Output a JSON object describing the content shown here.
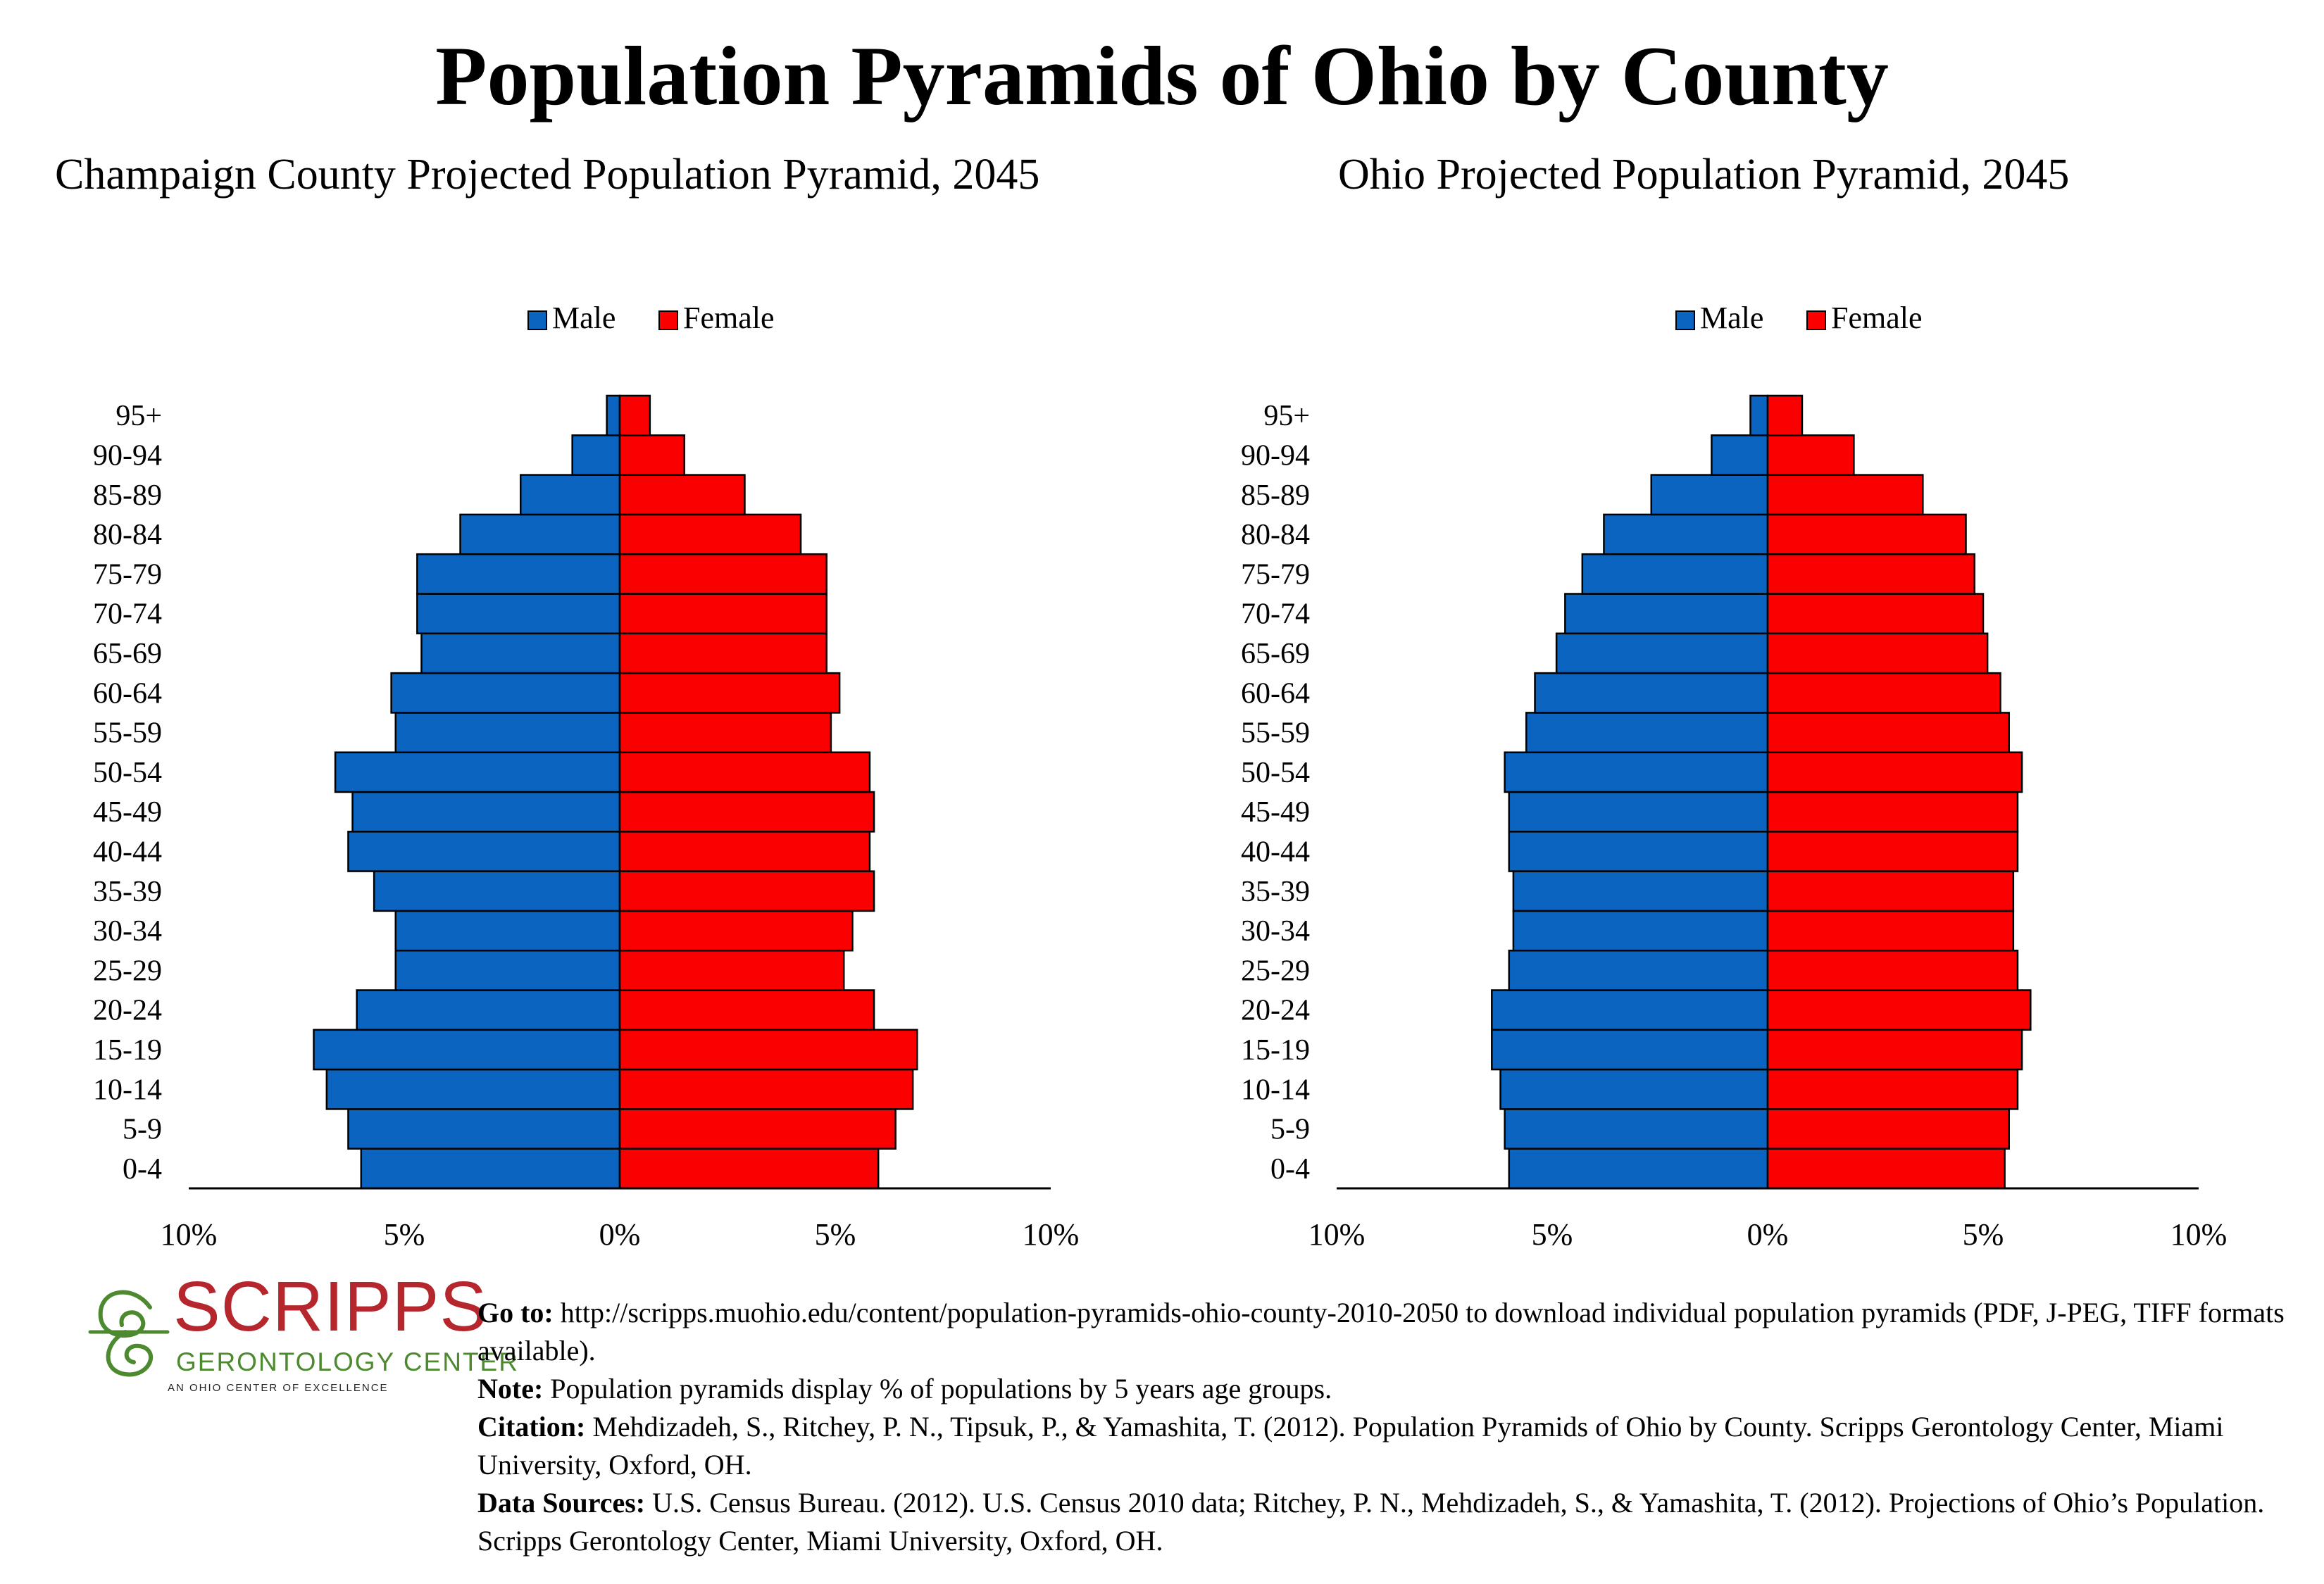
{
  "title": "Population Pyramids of Ohio by County",
  "colors": {
    "male": "#0a64c0",
    "female": "#fa0000",
    "outline": "#000000"
  },
  "legend": {
    "male": "Male",
    "female": "Female"
  },
  "chart_data": [
    {
      "type": "bar",
      "orientation": "horizontal-pyramid",
      "title": "Champaign County Projected Population Pyramid, 2045",
      "categories": [
        "0-4",
        "5-9",
        "10-14",
        "15-19",
        "20-24",
        "25-29",
        "30-34",
        "35-39",
        "40-44",
        "45-49",
        "50-54",
        "55-59",
        "60-64",
        "65-69",
        "70-74",
        "75-79",
        "80-84",
        "85-89",
        "90-94",
        "95+"
      ],
      "series": [
        {
          "name": "Male",
          "values": [
            6.0,
            6.3,
            6.8,
            7.1,
            6.1,
            5.2,
            5.2,
            5.7,
            6.3,
            6.2,
            6.6,
            5.2,
            5.3,
            4.6,
            4.7,
            4.7,
            3.7,
            2.3,
            1.1,
            0.3
          ]
        },
        {
          "name": "Female",
          "values": [
            6.0,
            6.4,
            6.8,
            6.9,
            5.9,
            5.2,
            5.4,
            5.9,
            5.8,
            5.9,
            5.8,
            4.9,
            5.1,
            4.8,
            4.8,
            4.8,
            4.2,
            2.9,
            1.5,
            0.7
          ]
        }
      ],
      "xlim": [
        -10,
        10
      ],
      "xticks": [
        "10%",
        "5%",
        "0%",
        "5%",
        "10%"
      ],
      "legend_position": "top-center"
    },
    {
      "type": "bar",
      "orientation": "horizontal-pyramid",
      "title": "Ohio Projected Population Pyramid, 2045",
      "categories": [
        "0-4",
        "5-9",
        "10-14",
        "15-19",
        "20-24",
        "25-29",
        "30-34",
        "35-39",
        "40-44",
        "45-49",
        "50-54",
        "55-59",
        "60-64",
        "65-69",
        "70-74",
        "75-79",
        "80-84",
        "85-89",
        "90-94",
        "95+"
      ],
      "series": [
        {
          "name": "Male",
          "values": [
            6.0,
            6.1,
            6.2,
            6.4,
            6.4,
            6.0,
            5.9,
            5.9,
            6.0,
            6.0,
            6.1,
            5.6,
            5.4,
            4.9,
            4.7,
            4.3,
            3.8,
            2.7,
            1.3,
            0.4
          ]
        },
        {
          "name": "Female",
          "values": [
            5.5,
            5.6,
            5.8,
            5.9,
            6.1,
            5.8,
            5.7,
            5.7,
            5.8,
            5.8,
            5.9,
            5.6,
            5.4,
            5.1,
            5.0,
            4.8,
            4.6,
            3.6,
            2.0,
            0.8
          ]
        }
      ],
      "xlim": [
        -10,
        10
      ],
      "xticks": [
        "10%",
        "5%",
        "0%",
        "5%",
        "10%"
      ],
      "legend_position": "top-center"
    }
  ],
  "logo": {
    "name": "SCRIPPS",
    "subtitle": "GERONTOLOGY CENTER",
    "tagline": "AN OHIO CENTER OF EXCELLENCE"
  },
  "footnotes": {
    "goto_label": "Go to:",
    "goto_text": " http://scripps.muohio.edu/content/population-pyramids-ohio-county-2010-2050 to download individual population pyramids (PDF, J-PEG, TIFF formats available).",
    "note_label": "Note:",
    "note_text": " Population pyramids display % of populations by 5 years age groups.",
    "citation_label": "Citation:",
    "citation_text": " Mehdizadeh, S., Ritchey, P. N., Tipsuk, P., & Yamashita, T. (2012). Population Pyramids of Ohio by County. Scripps Gerontology Center, Miami University, Oxford, OH.",
    "sources_label": "Data Sources:",
    "sources_text": " U.S. Census Bureau. (2012). U.S. Census 2010 data; Ritchey, P. N., Mehdizadeh, S., & Yamashita, T. (2012). Projections of Ohio’s Population. Scripps Gerontology Center, Miami University, Oxford, OH."
  }
}
